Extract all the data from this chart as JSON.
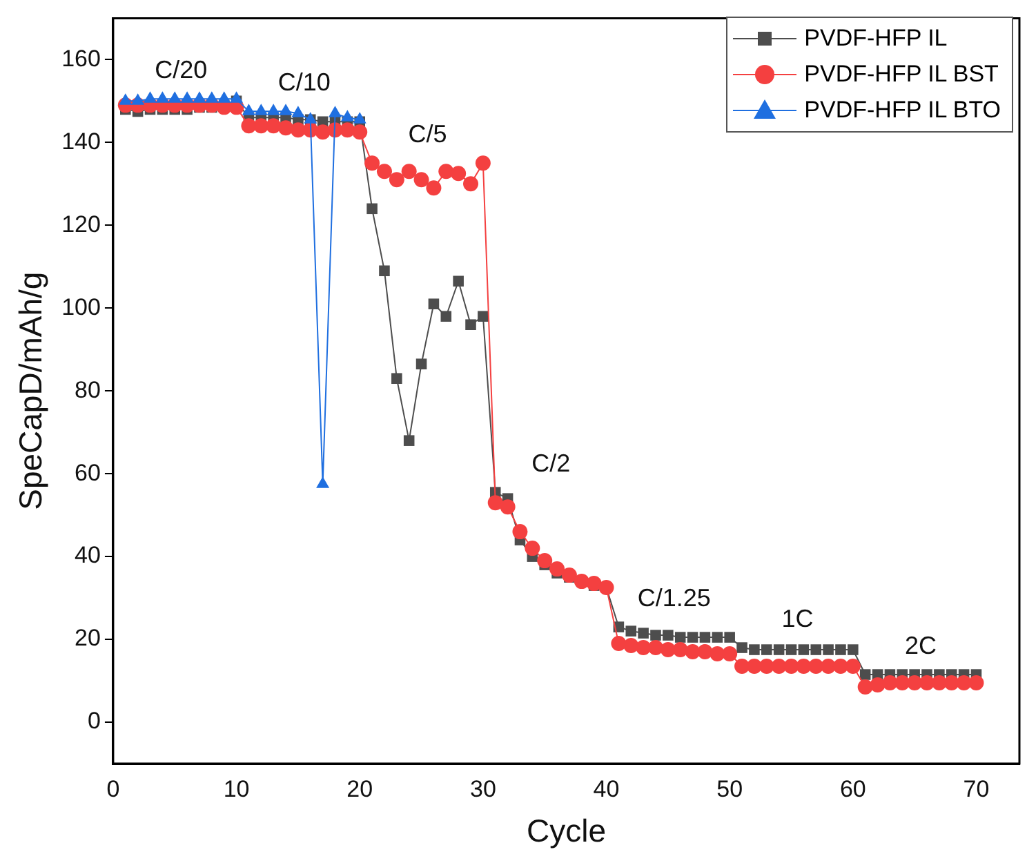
{
  "chart_data": {
    "type": "line",
    "xlabel": "Cycle",
    "ylabel": "SpeCapD/mAh/g",
    "xlim": [
      0,
      73.5
    ],
    "xticks": [
      0,
      10,
      20,
      30,
      40,
      50,
      60,
      70
    ],
    "ylim": [
      -10,
      170
    ],
    "yticks": [
      0,
      20,
      40,
      60,
      80,
      100,
      120,
      140,
      160
    ],
    "grid": false,
    "legend": "top right",
    "line_style": "solid",
    "x": [
      1,
      2,
      3,
      4,
      5,
      6,
      7,
      8,
      9,
      10,
      11,
      12,
      13,
      14,
      15,
      16,
      17,
      18,
      19,
      20,
      21,
      22,
      23,
      24,
      25,
      26,
      27,
      28,
      29,
      30,
      31,
      32,
      33,
      34,
      35,
      36,
      37,
      38,
      39,
      40,
      41,
      42,
      43,
      44,
      45,
      46,
      47,
      48,
      49,
      50,
      51,
      52,
      53,
      54,
      55,
      56,
      57,
      58,
      59,
      60,
      61,
      62,
      63,
      64,
      65,
      66,
      67,
      68,
      69,
      70
    ],
    "series": [
      {
        "name": "PVDF-HFP IL",
        "color": "#4d4d4d",
        "marker": "square",
        "values": [
          148,
          147.5,
          148,
          148,
          148,
          148,
          148.5,
          148.5,
          149,
          150,
          146,
          146,
          146,
          146,
          145.5,
          145.5,
          145,
          145,
          145,
          145,
          124,
          109,
          83,
          68,
          86.5,
          101,
          98,
          106.5,
          96,
          98,
          55.5,
          54,
          44,
          40,
          38,
          36,
          35,
          34,
          33,
          32.5,
          23,
          22,
          21.5,
          21,
          21,
          20.5,
          20.5,
          20.5,
          20.5,
          20.5,
          18,
          17.5,
          17.5,
          17.5,
          17.5,
          17.5,
          17.5,
          17.5,
          17.5,
          17.5,
          11.5,
          11.5,
          11.5,
          11.5,
          11.5,
          11.5,
          11.5,
          11.5,
          11.5,
          11.5
        ]
      },
      {
        "name": "PVDF-HFP IL BST",
        "color": "#f44040",
        "marker": "circle",
        "values": [
          149,
          149,
          149,
          149,
          149,
          149,
          149,
          149,
          148.5,
          148.5,
          144,
          144,
          144,
          143.5,
          143,
          143,
          142.5,
          143,
          143,
          142.5,
          135,
          133,
          131,
          133,
          131,
          129,
          133,
          132.5,
          130,
          135,
          53,
          52,
          46,
          42,
          39,
          37,
          35.5,
          34,
          33.5,
          32.5,
          19,
          18.5,
          18,
          18,
          17.5,
          17.5,
          17,
          17,
          16.5,
          16.5,
          13.5,
          13.5,
          13.5,
          13.5,
          13.5,
          13.5,
          13.5,
          13.5,
          13.5,
          13.5,
          8.5,
          9,
          9.5,
          9.5,
          9.5,
          9.5,
          9.5,
          9.5,
          9.5,
          9.5
        ]
      },
      {
        "name": "PVDF-HFP IL BTO",
        "color": "#1f6fe0",
        "marker": "triangle",
        "values": [
          150,
          150,
          150.5,
          150.5,
          150.5,
          150.5,
          150.5,
          150.5,
          150.5,
          150.5,
          147.5,
          147.5,
          147.5,
          147.5,
          147,
          145.5,
          57.5,
          147,
          146,
          145.5,
          null,
          null,
          null,
          null,
          null,
          null,
          null,
          null,
          null,
          null,
          null,
          null,
          null,
          null,
          null,
          null,
          null,
          null,
          null,
          null,
          null,
          null,
          null,
          null,
          null,
          null,
          null,
          null,
          null,
          null,
          null,
          null,
          null,
          null,
          null,
          null,
          null,
          null,
          null,
          null,
          null,
          null,
          null,
          null,
          null,
          null,
          null,
          null,
          null,
          null
        ]
      }
    ],
    "annotations": [
      "C/20",
      "C/10",
      "C/5",
      "C/2",
      "C/1.25",
      "1C",
      "2C"
    ]
  }
}
